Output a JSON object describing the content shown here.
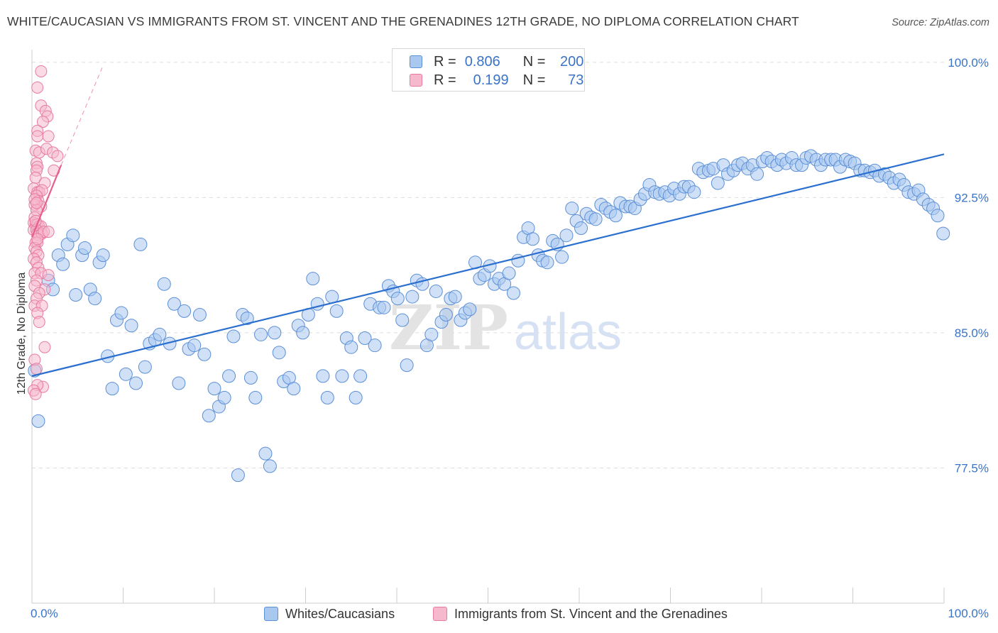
{
  "title": "WHITE/CAUCASIAN VS IMMIGRANTS FROM ST. VINCENT AND THE GRENADINES 12TH GRADE, NO DIPLOMA CORRELATION CHART",
  "source": "Source: ZipAtlas.com",
  "watermark": {
    "zip": "ZIP",
    "atlas": "atlas"
  },
  "colors": {
    "blue_fill": "#a9c8f0",
    "blue_stroke": "#5b8fd6",
    "blue_line": "#2a6fd0",
    "pink_fill": "#f6b8cc",
    "pink_stroke": "#e87aa0",
    "pink_line": "#e85d8f",
    "axis_text": "#3a73c8",
    "grid": "#dddddd"
  },
  "stats": {
    "r_label": "R =",
    "n_label": "N =",
    "series": [
      {
        "r": "0.806",
        "n": "200"
      },
      {
        "r": "0.199",
        "n": "73"
      }
    ]
  },
  "legend": [
    "Whites/Caucasians",
    "Immigrants from St. Vincent and the Grenadines"
  ],
  "chart_data": {
    "type": "scatter",
    "title": "WHITE/CAUCASIAN VS IMMIGRANTS FROM ST. VINCENT AND THE GRENADINES 12TH GRADE, NO DIPLOMA CORRELATION CHART",
    "xlabel": "",
    "ylabel": "12th Grade, No Diploma",
    "xlim": [
      0,
      100
    ],
    "ylim": [
      70.0,
      100.7
    ],
    "x_tick_labels": [
      "0.0%",
      "100.0%"
    ],
    "y_ticks": [
      77.5,
      85.0,
      92.5,
      100.0
    ],
    "y_tick_labels": [
      "77.5%",
      "85.0%",
      "92.5%",
      "100.0%"
    ],
    "grid": true,
    "legend_position": "bottom",
    "series": [
      {
        "name": "Whites/Caucasians",
        "color": "#a9c8f0",
        "trend": {
          "x": [
            0,
            100
          ],
          "y": [
            82.6,
            94.9
          ]
        },
        "points": [
          [
            0.3,
            82.9
          ],
          [
            0.7,
            80.1
          ],
          [
            1.8,
            87.9
          ],
          [
            2.3,
            87.4
          ],
          [
            2.9,
            89.3
          ],
          [
            3.4,
            88.8
          ],
          [
            3.9,
            89.9
          ],
          [
            4.5,
            90.4
          ],
          [
            4.8,
            87.1
          ],
          [
            5.5,
            89.3
          ],
          [
            5.8,
            89.7
          ],
          [
            6.4,
            87.4
          ],
          [
            6.9,
            86.9
          ],
          [
            7.4,
            88.9
          ],
          [
            7.8,
            89.3
          ],
          [
            8.3,
            83.7
          ],
          [
            8.8,
            81.9
          ],
          [
            9.3,
            85.7
          ],
          [
            9.8,
            86.1
          ],
          [
            10.3,
            82.7
          ],
          [
            10.9,
            85.4
          ],
          [
            11.4,
            82.2
          ],
          [
            11.9,
            89.9
          ],
          [
            12.4,
            83.1
          ],
          [
            12.9,
            84.4
          ],
          [
            13.5,
            84.6
          ],
          [
            14.0,
            84.9
          ],
          [
            14.5,
            87.7
          ],
          [
            15.1,
            84.4
          ],
          [
            15.6,
            86.6
          ],
          [
            16.1,
            82.2
          ],
          [
            16.7,
            86.2
          ],
          [
            17.2,
            84.1
          ],
          [
            17.8,
            84.3
          ],
          [
            18.4,
            86.0
          ],
          [
            18.9,
            83.8
          ],
          [
            19.4,
            80.4
          ],
          [
            20.0,
            81.9
          ],
          [
            20.5,
            80.9
          ],
          [
            21.1,
            81.4
          ],
          [
            21.6,
            82.6
          ],
          [
            22.1,
            84.8
          ],
          [
            22.6,
            77.1
          ],
          [
            23.1,
            86.0
          ],
          [
            23.6,
            85.8
          ],
          [
            24.0,
            82.5
          ],
          [
            24.5,
            81.4
          ],
          [
            25.1,
            84.9
          ],
          [
            25.6,
            78.3
          ],
          [
            26.1,
            77.6
          ],
          [
            26.6,
            85.0
          ],
          [
            27.1,
            83.9
          ],
          [
            27.6,
            82.3
          ],
          [
            28.2,
            82.5
          ],
          [
            28.7,
            81.9
          ],
          [
            29.2,
            85.4
          ],
          [
            29.7,
            85.0
          ],
          [
            30.3,
            86.0
          ],
          [
            30.8,
            88.0
          ],
          [
            31.3,
            86.6
          ],
          [
            31.9,
            82.6
          ],
          [
            32.4,
            81.4
          ],
          [
            32.9,
            87.0
          ],
          [
            33.4,
            86.2
          ],
          [
            34.0,
            82.6
          ],
          [
            34.5,
            84.7
          ],
          [
            35.0,
            84.2
          ],
          [
            35.5,
            81.4
          ],
          [
            36.0,
            82.6
          ],
          [
            36.5,
            84.7
          ],
          [
            37.1,
            86.6
          ],
          [
            37.6,
            84.3
          ],
          [
            38.1,
            86.4
          ],
          [
            38.6,
            86.4
          ],
          [
            39.1,
            87.6
          ],
          [
            39.6,
            87.3
          ],
          [
            40.1,
            86.9
          ],
          [
            40.6,
            85.7
          ],
          [
            41.1,
            83.2
          ],
          [
            41.7,
            87.0
          ],
          [
            42.2,
            87.9
          ],
          [
            42.8,
            87.7
          ],
          [
            43.3,
            84.3
          ],
          [
            43.8,
            84.9
          ],
          [
            44.3,
            87.3
          ],
          [
            44.9,
            85.6
          ],
          [
            45.4,
            86.0
          ],
          [
            45.9,
            86.9
          ],
          [
            46.4,
            87.0
          ],
          [
            47.0,
            85.7
          ],
          [
            47.5,
            86.1
          ],
          [
            48.0,
            86.3
          ],
          [
            48.6,
            88.9
          ],
          [
            49.1,
            88.0
          ],
          [
            49.6,
            88.2
          ],
          [
            50.2,
            88.7
          ],
          [
            50.7,
            87.7
          ],
          [
            51.2,
            88.0
          ],
          [
            51.8,
            87.7
          ],
          [
            52.3,
            88.3
          ],
          [
            52.8,
            87.2
          ],
          [
            53.3,
            89.0
          ],
          [
            53.9,
            90.3
          ],
          [
            54.4,
            90.8
          ],
          [
            54.9,
            90.2
          ],
          [
            55.5,
            89.3
          ],
          [
            56.0,
            89.0
          ],
          [
            56.5,
            88.9
          ],
          [
            57.1,
            90.1
          ],
          [
            57.6,
            89.9
          ],
          [
            58.1,
            89.2
          ],
          [
            58.6,
            90.4
          ],
          [
            59.2,
            91.9
          ],
          [
            59.7,
            91.2
          ],
          [
            60.2,
            90.8
          ],
          [
            60.8,
            91.6
          ],
          [
            61.3,
            91.4
          ],
          [
            61.8,
            91.3
          ],
          [
            62.4,
            92.1
          ],
          [
            62.9,
            91.9
          ],
          [
            63.4,
            91.7
          ],
          [
            64.0,
            91.5
          ],
          [
            64.5,
            92.2
          ],
          [
            65.1,
            92.0
          ],
          [
            65.6,
            92.0
          ],
          [
            66.1,
            91.9
          ],
          [
            66.7,
            92.4
          ],
          [
            67.2,
            92.7
          ],
          [
            67.7,
            93.2
          ],
          [
            68.3,
            92.8
          ],
          [
            68.8,
            92.7
          ],
          [
            69.4,
            92.8
          ],
          [
            69.9,
            92.6
          ],
          [
            70.4,
            93.0
          ],
          [
            71.0,
            92.7
          ],
          [
            71.5,
            93.1
          ],
          [
            72.0,
            93.1
          ],
          [
            72.6,
            92.8
          ],
          [
            73.1,
            94.1
          ],
          [
            73.6,
            93.9
          ],
          [
            74.2,
            94.0
          ],
          [
            74.7,
            94.1
          ],
          [
            75.2,
            93.3
          ],
          [
            75.8,
            94.3
          ],
          [
            76.3,
            93.8
          ],
          [
            76.9,
            94.0
          ],
          [
            77.4,
            94.3
          ],
          [
            77.9,
            94.4
          ],
          [
            78.5,
            94.1
          ],
          [
            79.0,
            94.3
          ],
          [
            79.5,
            93.8
          ],
          [
            80.1,
            94.5
          ],
          [
            80.6,
            94.7
          ],
          [
            81.1,
            94.5
          ],
          [
            81.7,
            94.3
          ],
          [
            82.2,
            94.6
          ],
          [
            82.7,
            94.4
          ],
          [
            83.3,
            94.7
          ],
          [
            83.8,
            94.3
          ],
          [
            84.4,
            94.3
          ],
          [
            84.9,
            94.7
          ],
          [
            85.4,
            94.8
          ],
          [
            86.0,
            94.6
          ],
          [
            86.5,
            94.3
          ],
          [
            87.0,
            94.6
          ],
          [
            87.6,
            94.6
          ],
          [
            88.1,
            94.6
          ],
          [
            88.6,
            94.2
          ],
          [
            89.2,
            94.6
          ],
          [
            89.7,
            94.5
          ],
          [
            90.2,
            94.4
          ],
          [
            90.8,
            94.0
          ],
          [
            91.3,
            94.0
          ],
          [
            91.9,
            93.9
          ],
          [
            92.4,
            94.0
          ],
          [
            92.9,
            93.7
          ],
          [
            93.5,
            93.8
          ],
          [
            94.0,
            93.6
          ],
          [
            94.5,
            93.3
          ],
          [
            95.1,
            93.5
          ],
          [
            95.6,
            93.2
          ],
          [
            96.1,
            92.8
          ],
          [
            96.7,
            92.7
          ],
          [
            97.2,
            92.9
          ],
          [
            97.7,
            92.4
          ],
          [
            98.3,
            92.1
          ],
          [
            98.8,
            91.9
          ],
          [
            99.3,
            91.5
          ],
          [
            99.9,
            90.5
          ]
        ]
      },
      {
        "name": "Immigrants from St. Vincent and the Grenadines",
        "color": "#f6b8cc",
        "trend": {
          "x": [
            0,
            3.2
          ],
          "y": [
            90.3,
            94.3
          ]
        },
        "trend_extension": {
          "x": [
            3.2,
            7.7
          ],
          "y": [
            94.3,
            99.7
          ]
        },
        "points": [
          [
            1.0,
            99.5
          ],
          [
            0.6,
            98.6
          ],
          [
            1.0,
            97.6
          ],
          [
            1.5,
            97.3
          ],
          [
            1.7,
            97.0
          ],
          [
            1.2,
            96.7
          ],
          [
            0.6,
            96.2
          ],
          [
            0.6,
            95.9
          ],
          [
            1.8,
            95.9
          ],
          [
            0.4,
            95.1
          ],
          [
            0.8,
            95.0
          ],
          [
            1.6,
            95.2
          ],
          [
            2.3,
            95.0
          ],
          [
            2.8,
            94.8
          ],
          [
            0.5,
            94.4
          ],
          [
            0.6,
            94.2
          ],
          [
            0.5,
            94.0
          ],
          [
            2.4,
            94.0
          ],
          [
            0.4,
            93.6
          ],
          [
            1.4,
            93.3
          ],
          [
            0.2,
            93.0
          ],
          [
            0.6,
            92.8
          ],
          [
            0.8,
            92.8
          ],
          [
            1.1,
            92.9
          ],
          [
            0.5,
            92.6
          ],
          [
            0.7,
            92.3
          ],
          [
            1.0,
            92.0
          ],
          [
            0.3,
            92.1
          ],
          [
            0.5,
            91.8
          ],
          [
            0.3,
            91.4
          ],
          [
            0.2,
            91.1
          ],
          [
            0.4,
            91.0
          ],
          [
            0.6,
            91.0
          ],
          [
            0.8,
            90.9
          ],
          [
            1.0,
            90.9
          ],
          [
            0.2,
            90.7
          ],
          [
            0.5,
            90.7
          ],
          [
            0.6,
            90.5
          ],
          [
            0.8,
            90.4
          ],
          [
            1.1,
            90.5
          ],
          [
            1.3,
            90.6
          ],
          [
            1.8,
            90.6
          ],
          [
            0.4,
            90.0
          ],
          [
            0.6,
            90.0
          ],
          [
            0.3,
            89.7
          ],
          [
            0.5,
            89.5
          ],
          [
            0.7,
            89.3
          ],
          [
            0.2,
            89.1
          ],
          [
            0.5,
            88.9
          ],
          [
            0.7,
            88.6
          ],
          [
            0.3,
            88.3
          ],
          [
            1.0,
            88.3
          ],
          [
            1.8,
            88.2
          ],
          [
            0.5,
            87.9
          ],
          [
            0.3,
            87.6
          ],
          [
            1.4,
            87.4
          ],
          [
            0.8,
            87.2
          ],
          [
            0.5,
            86.9
          ],
          [
            0.3,
            86.5
          ],
          [
            1.1,
            86.5
          ],
          [
            0.6,
            86.1
          ],
          [
            0.8,
            85.6
          ],
          [
            1.4,
            84.2
          ],
          [
            0.3,
            83.5
          ],
          [
            0.5,
            83.0
          ],
          [
            1.2,
            82.0
          ],
          [
            0.6,
            82.1
          ],
          [
            0.2,
            81.8
          ],
          [
            0.4,
            81.6
          ],
          [
            0.3,
            92.4
          ],
          [
            0.5,
            92.2
          ],
          [
            0.6,
            90.2
          ],
          [
            0.4,
            91.2
          ]
        ]
      }
    ]
  }
}
